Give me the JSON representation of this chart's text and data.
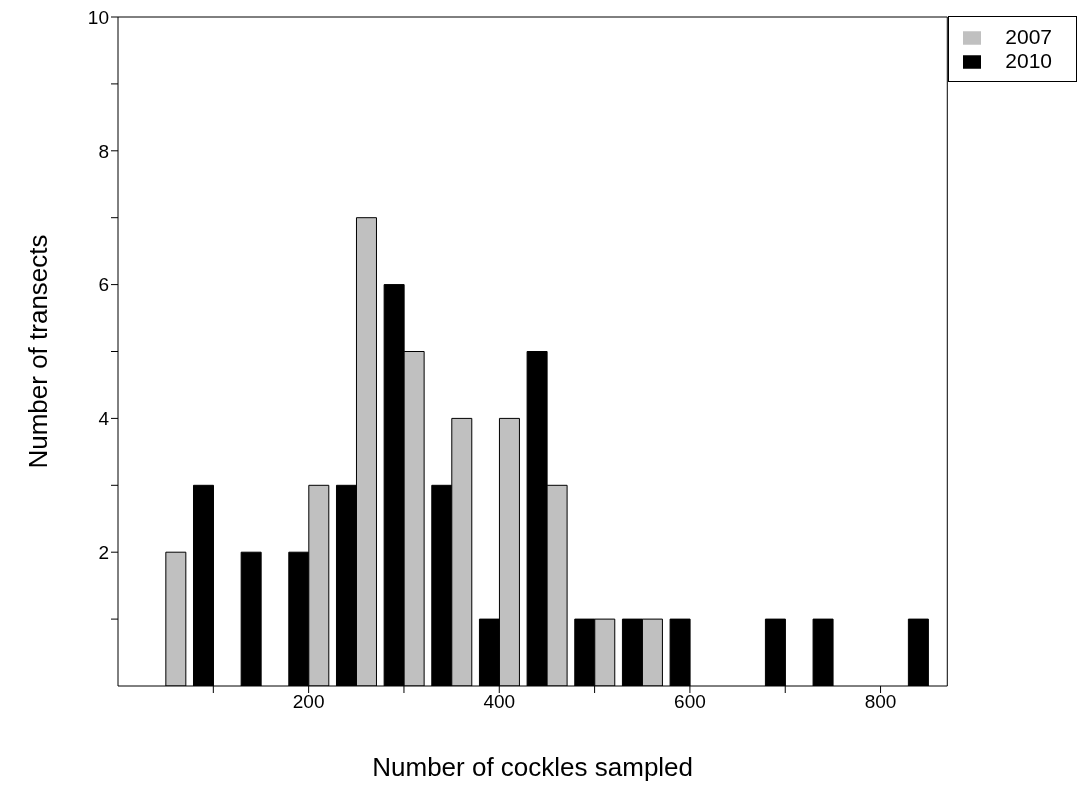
{
  "chart_data": {
    "type": "bar",
    "xlabel": "Number of cockles sampled",
    "ylabel": "Number of transects",
    "x": [
      50,
      100,
      150,
      200,
      250,
      300,
      350,
      400,
      450,
      500,
      550,
      600,
      650,
      700,
      750,
      800,
      850
    ],
    "series": [
      {
        "name": "2010",
        "color": "#000000",
        "values": [
          0,
          3,
          2,
          2,
          3,
          6,
          3,
          1,
          5,
          1,
          1,
          1,
          0,
          1,
          1,
          0,
          1
        ]
      },
      {
        "name": "2007",
        "color": "#c0c0c0",
        "values": [
          2,
          0,
          0,
          3,
          7,
          5,
          4,
          4,
          3,
          1,
          1,
          0,
          0,
          0,
          0,
          0,
          0
        ]
      }
    ],
    "xlim": [
      0,
      870
    ],
    "xticks": [
      {
        "value": 100,
        "label": null
      },
      200,
      {
        "value": 300,
        "label": null
      },
      400,
      {
        "value": 500,
        "label": null
      },
      600,
      {
        "value": 700,
        "label": null
      },
      800
    ],
    "ylim": [
      0,
      10
    ],
    "yticks": [
      {
        "value": 1,
        "label": null
      },
      2,
      {
        "value": 3,
        "label": null
      },
      4,
      {
        "value": 5,
        "label": null
      },
      6,
      {
        "value": 7,
        "label": null
      },
      8,
      {
        "value": 9,
        "label": null
      },
      10
    ],
    "grid": false,
    "legend": "top right"
  }
}
